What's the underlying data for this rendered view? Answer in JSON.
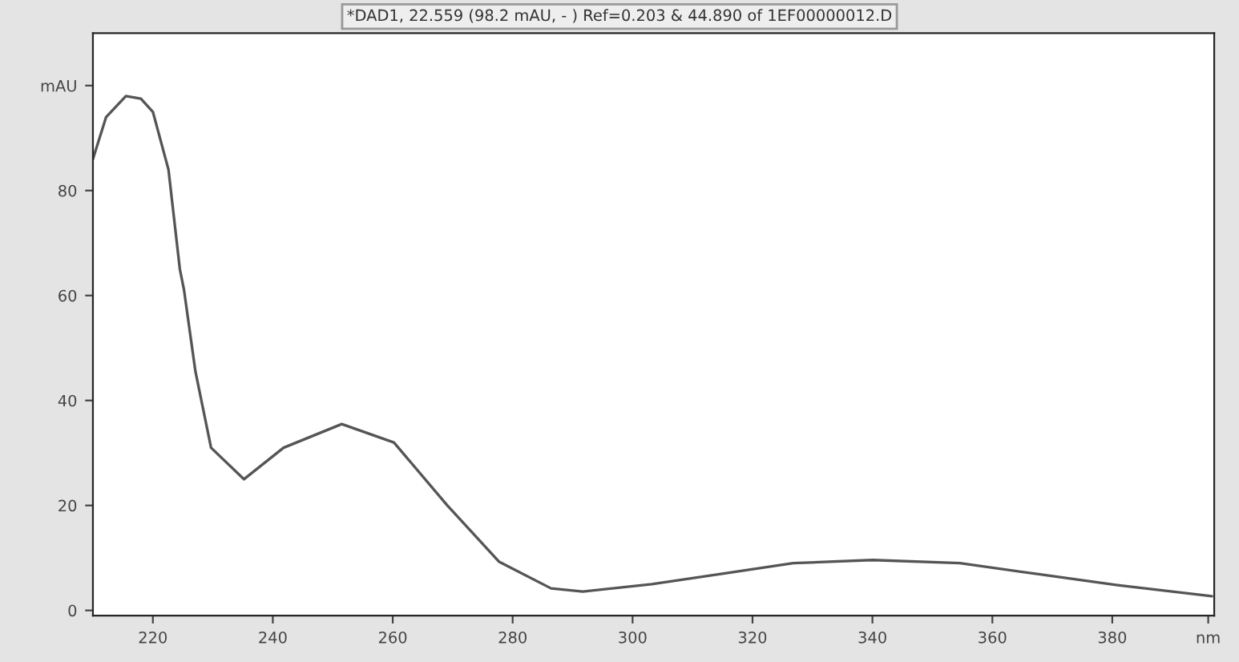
{
  "chart_data": {
    "type": "line",
    "title": "*DAD1, 22.559 (98.2 mAU, - ) Ref=0.203 & 44.890 of 1EF00000012.D",
    "x": [
      210.0,
      212.2,
      215.5,
      218.0,
      220.0,
      222.6,
      224.5,
      225.2,
      227.1,
      229.7,
      235.2,
      241.8,
      251.5,
      260.2,
      269.1,
      277.7,
      286.4,
      291.7,
      303.2,
      314.5,
      326.8,
      340.0,
      354.6,
      367.7,
      380.9,
      396.6
    ],
    "series": [
      {
        "color": "#555555",
        "values": [
          86,
          94,
          98,
          97.5,
          95,
          84,
          65,
          61,
          45.5,
          31,
          25,
          31,
          35.5,
          32,
          20,
          9.3,
          4.2,
          3.6,
          5,
          6.9,
          9,
          9.6,
          9,
          6.9,
          4.8,
          2.7
        ]
      }
    ],
    "xlim": [
      210,
      397
    ],
    "xticks": [
      220,
      240,
      260,
      280,
      300,
      320,
      340,
      360,
      380,
      {
        "value": 396,
        "label": "nm"
      }
    ],
    "ylim": [
      -1,
      110
    ],
    "yticks": [
      0,
      20,
      40,
      60,
      80,
      {
        "value": 100,
        "label": "mAU"
      }
    ],
    "grid": false,
    "legend": false,
    "marker": "none",
    "line_style": "solid"
  }
}
